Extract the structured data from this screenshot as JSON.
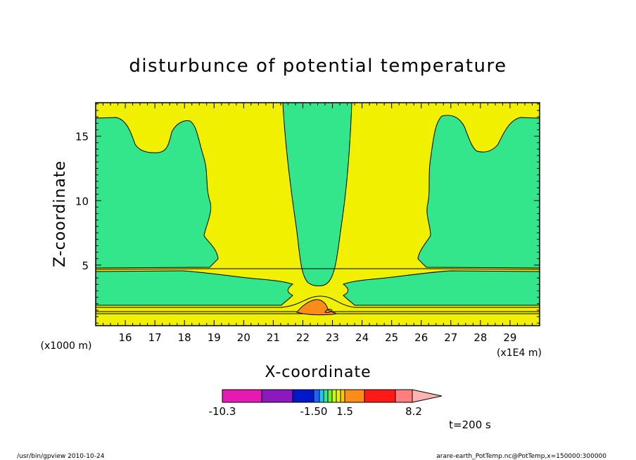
{
  "chart_data": {
    "type": "contour",
    "title": "disturbunce of potential temperature",
    "xlabel": "X-coordinate",
    "ylabel": "Z-coordinate",
    "x_unit_label": "(x1E4 m)",
    "y_unit_label": "(x1000 m)",
    "xlim": [
      15.0,
      30.0
    ],
    "ylim": [
      0.3,
      17.6
    ],
    "x_ticks": [
      16,
      17,
      18,
      19,
      20,
      21,
      22,
      23,
      24,
      25,
      26,
      27,
      28,
      29
    ],
    "y_ticks": [
      5,
      10,
      15
    ],
    "colorbar": {
      "labels": [
        "-10.3",
        "-1.50",
        "1.5",
        "8.2"
      ],
      "colors": [
        "#e619b3",
        "#8c19c0",
        "#0019c8",
        "#1a66ff",
        "#19c8ff",
        "#33e68c",
        "#6cf03c",
        "#c8ff00",
        "#f0f000",
        "#ffc800",
        "#ff8c19",
        "#ff1919",
        "#ff7f7f",
        "#ffb4b4"
      ]
    },
    "background_color": "#f0f000",
    "positive_color": "#33e68c",
    "peak_color": "#ff8c19"
  },
  "annotations": {
    "time_label": "t=200 s",
    "footer_left": "/usr/bin/gpview   2010-10-24",
    "footer_right": "arare-earth_PotTemp.nc@PotTemp,x=150000:300000"
  }
}
